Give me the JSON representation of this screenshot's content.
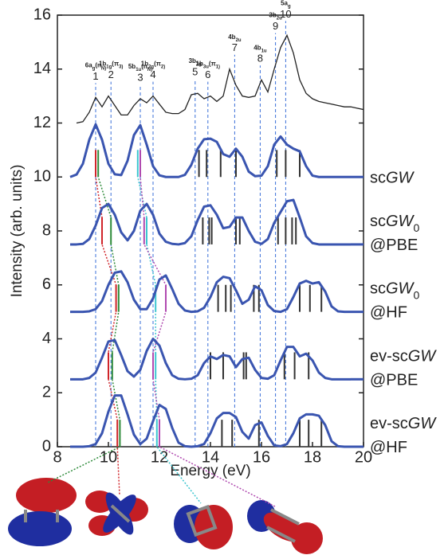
{
  "chart_data": {
    "type": "line",
    "xlabel": "Energy (eV)",
    "ylabel": "Intensity (arb. units)",
    "xlim": [
      8,
      20
    ],
    "ylim": [
      0,
      16
    ],
    "xticks": [
      8,
      10,
      12,
      14,
      16,
      18,
      20
    ],
    "yticks": [
      0,
      2,
      4,
      6,
      8,
      10,
      12,
      14,
      16
    ],
    "x": [
      8.5,
      8.75,
      9,
      9.25,
      9.5,
      9.75,
      10,
      10.25,
      10.5,
      10.75,
      11,
      11.25,
      11.5,
      11.75,
      12,
      12.25,
      12.5,
      12.75,
      13,
      13.25,
      13.5,
      13.75,
      14,
      14.25,
      14.5,
      14.75,
      15,
      15.25,
      15.5,
      15.75,
      16,
      16.25,
      16.5,
      16.75,
      17,
      17.25,
      17.5,
      17.75,
      18,
      18.25,
      18.5,
      18.75,
      19,
      19.25,
      19.5
    ],
    "series": [
      {
        "name": "scGW",
        "color": "#3a55b0",
        "offset": 10,
        "values": [
          10,
          10.09,
          10.49,
          11.38,
          11.95,
          11.38,
          10.49,
          10.1,
          10.07,
          10.6,
          11.55,
          11.92,
          11.2,
          10.4,
          10.06,
          10,
          10,
          10,
          10.08,
          10.45,
          11.05,
          11.4,
          11.42,
          11.3,
          10.85,
          10.75,
          11.05,
          10.75,
          10.2,
          10.03,
          10.05,
          10.4,
          11.2,
          11.5,
          11.2,
          11.05,
          10.95,
          10.4,
          10.05,
          10,
          10,
          10,
          10,
          10,
          10
        ],
        "sticks": [
          {
            "energy": 9.5,
            "color": "#d0252a"
          },
          {
            "energy": 9.6,
            "color": "#2e8b3a"
          },
          {
            "energy": 11.15,
            "color": "#3cc6d0"
          },
          {
            "energy": 11.25,
            "color": "#b04ab0"
          },
          {
            "energy": 13.55,
            "color": "#333333"
          },
          {
            "energy": 13.85,
            "color": "#333333"
          },
          {
            "energy": 14.4,
            "color": "#333333"
          },
          {
            "energy": 15.0,
            "color": "#333333"
          },
          {
            "energy": 16.6,
            "color": "#333333"
          },
          {
            "energy": 16.95,
            "color": "#333333"
          },
          {
            "energy": 17.5,
            "color": "#333333"
          }
        ]
      },
      {
        "name": "scGW_0@PBE",
        "color": "#3a55b0",
        "offset": 7.5,
        "values": [
          7.5,
          7.5,
          7.52,
          7.7,
          8.2,
          8.85,
          9.0,
          8.6,
          7.95,
          7.65,
          8.0,
          8.75,
          9.0,
          8.6,
          7.9,
          7.6,
          7.52,
          7.5,
          7.55,
          7.8,
          8.4,
          8.9,
          8.95,
          8.6,
          8.1,
          8.15,
          8.5,
          8.5,
          8.0,
          7.6,
          7.52,
          7.7,
          8.3,
          8.7,
          9.1,
          9.15,
          8.5,
          7.8,
          7.55,
          7.5,
          7.5,
          7.5,
          7.5,
          7.5,
          7.5
        ],
        "sticks": [
          {
            "energy": 9.75,
            "color": "#d0252a"
          },
          {
            "energy": 10.1,
            "color": "#2e8b3a"
          },
          {
            "energy": 11.4,
            "color": "#b04ab0"
          },
          {
            "energy": 11.5,
            "color": "#3cc6d0"
          },
          {
            "energy": 13.7,
            "color": "#333333"
          },
          {
            "energy": 13.95,
            "color": "#333333"
          },
          {
            "energy": 14.05,
            "color": "#333333"
          },
          {
            "energy": 15.0,
            "color": "#333333"
          },
          {
            "energy": 15.15,
            "color": "#333333"
          },
          {
            "energy": 16.65,
            "color": "#333333"
          },
          {
            "energy": 16.95,
            "color": "#333333"
          },
          {
            "energy": 17.2,
            "color": "#333333"
          },
          {
            "energy": 17.35,
            "color": "#333333"
          }
        ]
      },
      {
        "name": "scGW_0@HF",
        "color": "#3a55b0",
        "offset": 5,
        "values": [
          5,
          5,
          5,
          5.02,
          5.1,
          5.4,
          6.0,
          6.45,
          6.5,
          6.1,
          5.45,
          5.1,
          5.1,
          5.5,
          6.2,
          6.35,
          5.85,
          5.3,
          5.05,
          5,
          5.02,
          5.15,
          5.55,
          6.1,
          6.3,
          6.25,
          5.8,
          5.3,
          5.45,
          5.95,
          5.8,
          5.25,
          5.03,
          5,
          5.1,
          5.55,
          6.05,
          6.15,
          6.05,
          6.1,
          5.75,
          5.2,
          5.02,
          5,
          5
        ],
        "sticks": [
          {
            "energy": 10.3,
            "color": "#d0252a"
          },
          {
            "energy": 10.4,
            "color": "#2e8b3a"
          },
          {
            "energy": 11.85,
            "color": "#3cc6d0"
          },
          {
            "energy": 12.25,
            "color": "#b04ab0"
          },
          {
            "energy": 14.3,
            "color": "#333333"
          },
          {
            "energy": 14.6,
            "color": "#333333"
          },
          {
            "energy": 14.8,
            "color": "#333333"
          },
          {
            "energy": 15.7,
            "color": "#333333"
          },
          {
            "energy": 15.9,
            "color": "#333333"
          },
          {
            "energy": 17.5,
            "color": "#333333"
          },
          {
            "energy": 17.9,
            "color": "#333333"
          },
          {
            "energy": 18.35,
            "color": "#333333"
          }
        ]
      },
      {
        "name": "ev-scGW@PBE",
        "color": "#3a55b0",
        "offset": 2.5,
        "values": [
          2.5,
          2.5,
          2.5,
          2.55,
          2.75,
          3.3,
          3.9,
          3.95,
          3.4,
          2.8,
          2.6,
          2.85,
          3.55,
          4.0,
          3.75,
          3.1,
          2.65,
          2.52,
          2.5,
          2.52,
          2.65,
          3.1,
          3.35,
          3.25,
          3.4,
          3.35,
          2.95,
          3.25,
          3.3,
          2.85,
          2.55,
          2.52,
          2.65,
          3.2,
          3.7,
          3.7,
          3.35,
          3.45,
          3.2,
          2.75,
          2.55,
          2.5,
          2.5,
          2.5,
          2.5
        ],
        "sticks": [
          {
            "energy": 10.0,
            "color": "#d0252a"
          },
          {
            "energy": 10.15,
            "color": "#2e8b3a"
          },
          {
            "energy": 11.75,
            "color": "#b04ab0"
          },
          {
            "energy": 11.85,
            "color": "#3cc6d0"
          },
          {
            "energy": 14.0,
            "color": "#333333"
          },
          {
            "energy": 14.5,
            "color": "#333333"
          },
          {
            "energy": 15.3,
            "color": "#333333"
          },
          {
            "energy": 15.4,
            "color": "#333333"
          },
          {
            "energy": 16.9,
            "color": "#333333"
          },
          {
            "energy": 17.3,
            "color": "#333333"
          },
          {
            "energy": 17.85,
            "color": "#333333"
          }
        ]
      },
      {
        "name": "ev-scGW@HF",
        "color": "#3a55b0",
        "offset": 0,
        "values": [
          0,
          0,
          0,
          0.02,
          0.1,
          0.5,
          1.3,
          1.9,
          1.9,
          1.2,
          0.45,
          0.1,
          0.3,
          0.95,
          1.55,
          1.4,
          0.7,
          0.15,
          0.02,
          0,
          0.02,
          0.1,
          0.5,
          1.05,
          1.25,
          1.25,
          1.1,
          0.55,
          0.3,
          0.8,
          0.9,
          0.4,
          0.05,
          0.02,
          0.1,
          0.5,
          1.05,
          1.2,
          1.2,
          1.15,
          0.8,
          0.2,
          0.02,
          0,
          0
        ],
        "sticks": [
          {
            "energy": 10.35,
            "color": "#d0252a"
          },
          {
            "energy": 10.45,
            "color": "#2e8b3a"
          },
          {
            "energy": 11.9,
            "color": "#3cc6d0"
          },
          {
            "energy": 12.0,
            "color": "#b04ab0"
          },
          {
            "energy": 14.45,
            "color": "#333333"
          },
          {
            "energy": 14.85,
            "color": "#333333"
          },
          {
            "energy": 15.9,
            "color": "#333333"
          },
          {
            "energy": 17.5,
            "color": "#333333"
          },
          {
            "energy": 17.85,
            "color": "#333333"
          },
          {
            "energy": 18.35,
            "color": "#333333"
          }
        ]
      }
    ],
    "experiment": {
      "color": "#222222",
      "x": [
        8.75,
        9,
        9.25,
        9.5,
        9.75,
        10,
        10.25,
        10.5,
        10.75,
        11,
        11.25,
        11.5,
        11.75,
        12,
        12.25,
        12.5,
        12.75,
        13,
        13.25,
        13.5,
        13.75,
        14,
        14.25,
        14.5,
        14.75,
        15,
        15.25,
        15.5,
        15.75,
        16,
        16.25,
        16.5,
        16.75,
        17,
        17.25,
        17.5,
        17.75,
        18,
        18.25,
        18.5,
        18.75,
        19,
        19.25,
        19.5,
        19.75,
        20
      ],
      "values": [
        12.0,
        12.05,
        12.4,
        12.95,
        12.6,
        13.0,
        12.65,
        12.3,
        12.3,
        12.65,
        12.9,
        12.75,
        13.0,
        12.7,
        12.4,
        12.35,
        12.35,
        12.5,
        13.05,
        13.1,
        12.9,
        13.0,
        12.8,
        13.0,
        14.0,
        13.4,
        13.0,
        12.95,
        13.0,
        13.6,
        13.15,
        14.0,
        14.8,
        15.25,
        14.6,
        13.6,
        13.1,
        12.9,
        12.8,
        12.75,
        12.7,
        12.65,
        12.6,
        12.6,
        12.55,
        12.5
      ]
    },
    "peaks": [
      {
        "label": "1",
        "orbital": "6a_g(n_N)",
        "energy": 9.5
      },
      {
        "label": "2",
        "orbital": "1b_1g(π_3)",
        "energy": 10.1
      },
      {
        "label": "3",
        "orbital": "5b_1u(n_N)",
        "energy": 11.25
      },
      {
        "label": "4",
        "orbital": "1b_2g(π_2)",
        "energy": 11.75
      },
      {
        "label": "5",
        "orbital": "3b_3g",
        "energy": 13.4
      },
      {
        "label": "6",
        "orbital": "1b_3u(π_1)",
        "energy": 13.9
      },
      {
        "label": "7",
        "orbital": "4b_2u",
        "energy": 14.95
      },
      {
        "label": "8",
        "orbital": "4b_1u",
        "energy": 15.95
      },
      {
        "label": "9",
        "orbital": "3b_2u",
        "energy": 16.55
      },
      {
        "label": "10",
        "orbital": "5a_g",
        "energy": 16.95
      }
    ]
  }
}
